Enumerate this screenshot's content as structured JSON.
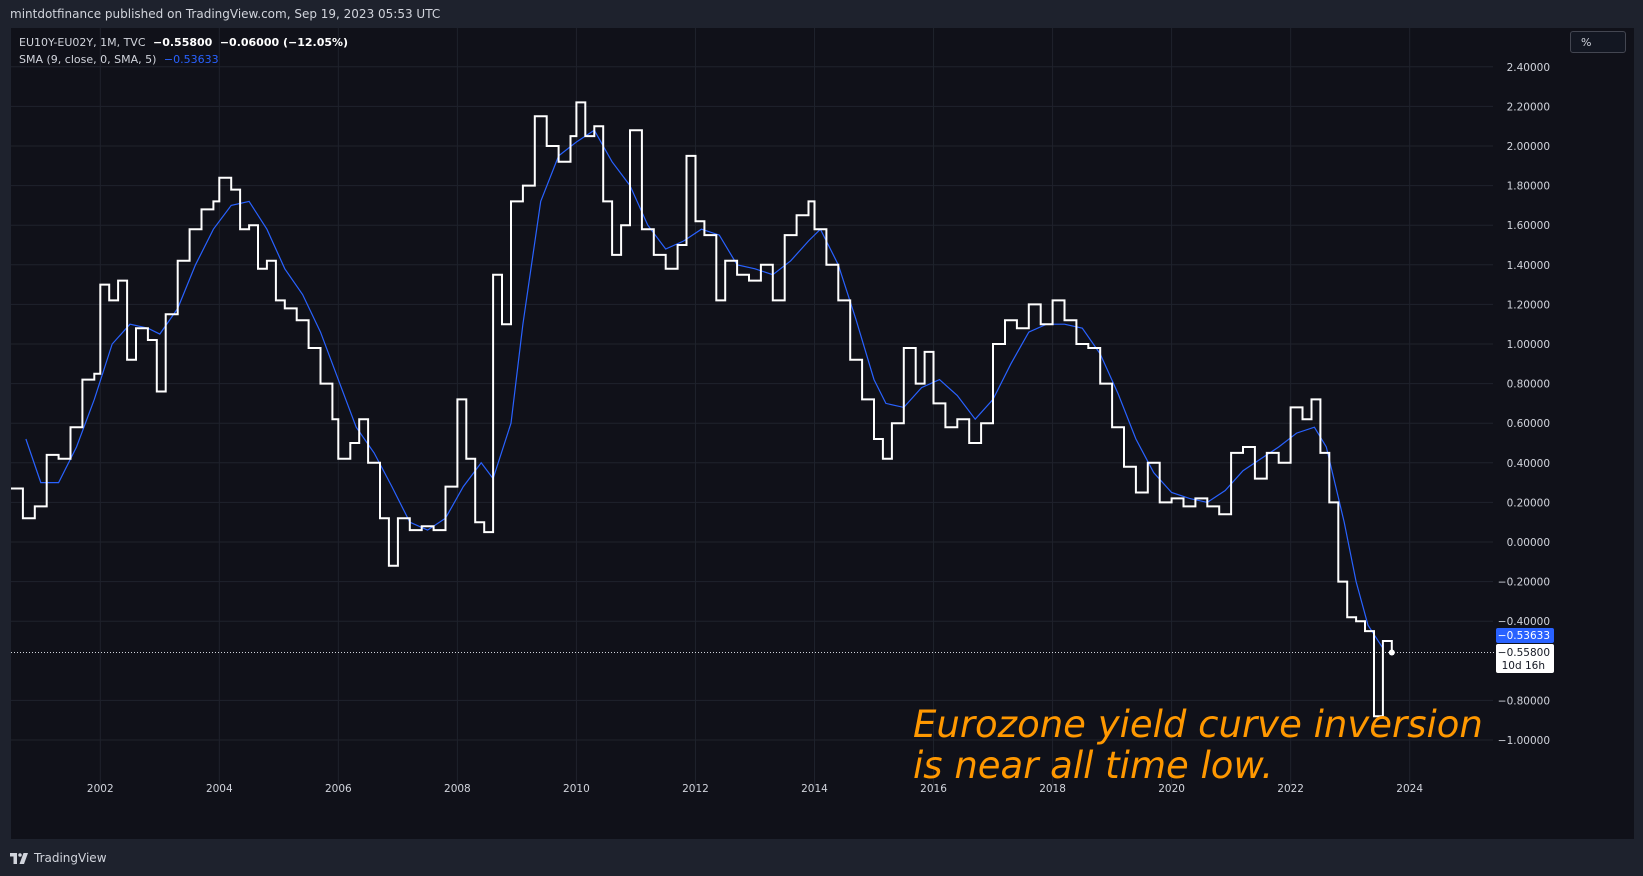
{
  "header": {
    "publisher_text": "mintdotfinance published on TradingView.com, Sep 19, 2023 05:53 UTC"
  },
  "legend": {
    "symbol": "EU10Y-EU02Y, 1M, TVC",
    "last": "−0.55800",
    "change": "−0.06000 (−12.05%)",
    "sma_label": "SMA (9, close, 0, SMA, 5)",
    "sma_value": "−0.53633"
  },
  "unit_button": "%",
  "annotation": {
    "line1": "Eurozone yield curve inversion",
    "line2": "is near all time low."
  },
  "footer": {
    "brand": "TradingView",
    "logo_icon": "tradingview-logo-icon"
  },
  "price_labels": {
    "sma_tag": "−0.53633",
    "last_tag": "−0.55800",
    "countdown": "10d 16h"
  },
  "colors": {
    "background": "#101119",
    "grid": "#1f222c",
    "price_line": "#ffffff",
    "sma_line": "#2962ff",
    "annotation": "#ff9800",
    "axis_text": "#d1d4dc"
  },
  "chart_data": {
    "type": "line",
    "step": true,
    "title": "",
    "xlabel": "",
    "ylabel": "",
    "xlim": [
      2000.5,
      2025.4
    ],
    "ylim": [
      -1.12,
      2.5
    ],
    "grid": true,
    "x_ticks": [
      "2002",
      "2004",
      "2006",
      "2008",
      "2010",
      "2012",
      "2014",
      "2016",
      "2018",
      "2020",
      "2022",
      "2024"
    ],
    "y_ticks": [
      "2.40000",
      "2.20000",
      "2.00000",
      "1.80000",
      "1.60000",
      "1.40000",
      "1.20000",
      "1.00000",
      "0.80000",
      "0.60000",
      "0.40000",
      "0.20000",
      "0.00000",
      "−0.20000",
      "−0.40000",
      "−0.80000",
      "−1.00000"
    ],
    "last_price": -0.558,
    "series": [
      {
        "name": "EU10Y-EU02Y",
        "points": [
          [
            2000.5,
            0.27
          ],
          [
            2000.7,
            0.12
          ],
          [
            2000.9,
            0.18
          ],
          [
            2001.1,
            0.44
          ],
          [
            2001.3,
            0.42
          ],
          [
            2001.5,
            0.58
          ],
          [
            2001.7,
            0.82
          ],
          [
            2001.9,
            0.85
          ],
          [
            2002.0,
            1.3
          ],
          [
            2002.15,
            1.22
          ],
          [
            2002.3,
            1.32
          ],
          [
            2002.45,
            0.92
          ],
          [
            2002.6,
            1.08
          ],
          [
            2002.8,
            1.02
          ],
          [
            2002.95,
            0.76
          ],
          [
            2003.1,
            1.15
          ],
          [
            2003.3,
            1.42
          ],
          [
            2003.5,
            1.58
          ],
          [
            2003.7,
            1.68
          ],
          [
            2003.9,
            1.72
          ],
          [
            2004.0,
            1.84
          ],
          [
            2004.2,
            1.78
          ],
          [
            2004.35,
            1.58
          ],
          [
            2004.5,
            1.6
          ],
          [
            2004.65,
            1.38
          ],
          [
            2004.8,
            1.42
          ],
          [
            2004.95,
            1.22
          ],
          [
            2005.1,
            1.18
          ],
          [
            2005.3,
            1.12
          ],
          [
            2005.5,
            0.98
          ],
          [
            2005.7,
            0.8
          ],
          [
            2005.9,
            0.62
          ],
          [
            2006.0,
            0.42
          ],
          [
            2006.2,
            0.5
          ],
          [
            2006.35,
            0.62
          ],
          [
            2006.5,
            0.4
          ],
          [
            2006.7,
            0.12
          ],
          [
            2006.85,
            -0.12
          ],
          [
            2007.0,
            0.12
          ],
          [
            2007.2,
            0.06
          ],
          [
            2007.4,
            0.08
          ],
          [
            2007.6,
            0.06
          ],
          [
            2007.8,
            0.28
          ],
          [
            2008.0,
            0.72
          ],
          [
            2008.15,
            0.42
          ],
          [
            2008.3,
            0.1
          ],
          [
            2008.45,
            0.05
          ],
          [
            2008.6,
            1.35
          ],
          [
            2008.75,
            1.1
          ],
          [
            2008.9,
            1.72
          ],
          [
            2009.1,
            1.8
          ],
          [
            2009.3,
            2.15
          ],
          [
            2009.5,
            2.0
          ],
          [
            2009.7,
            1.92
          ],
          [
            2009.9,
            2.05
          ],
          [
            2010.0,
            2.22
          ],
          [
            2010.15,
            2.05
          ],
          [
            2010.3,
            2.1
          ],
          [
            2010.45,
            1.72
          ],
          [
            2010.6,
            1.45
          ],
          [
            2010.75,
            1.6
          ],
          [
            2010.9,
            2.08
          ],
          [
            2011.1,
            1.58
          ],
          [
            2011.3,
            1.45
          ],
          [
            2011.5,
            1.38
          ],
          [
            2011.7,
            1.5
          ],
          [
            2011.85,
            1.95
          ],
          [
            2012.0,
            1.62
          ],
          [
            2012.15,
            1.55
          ],
          [
            2012.35,
            1.22
          ],
          [
            2012.5,
            1.42
          ],
          [
            2012.7,
            1.35
          ],
          [
            2012.9,
            1.32
          ],
          [
            2013.1,
            1.4
          ],
          [
            2013.3,
            1.22
          ],
          [
            2013.5,
            1.55
          ],
          [
            2013.7,
            1.65
          ],
          [
            2013.9,
            1.72
          ],
          [
            2014.0,
            1.58
          ],
          [
            2014.2,
            1.4
          ],
          [
            2014.4,
            1.22
          ],
          [
            2014.6,
            0.92
          ],
          [
            2014.8,
            0.72
          ],
          [
            2015.0,
            0.52
          ],
          [
            2015.15,
            0.42
          ],
          [
            2015.3,
            0.6
          ],
          [
            2015.5,
            0.98
          ],
          [
            2015.7,
            0.8
          ],
          [
            2015.85,
            0.96
          ],
          [
            2016.0,
            0.7
          ],
          [
            2016.2,
            0.58
          ],
          [
            2016.4,
            0.62
          ],
          [
            2016.6,
            0.5
          ],
          [
            2016.8,
            0.6
          ],
          [
            2017.0,
            1.0
          ],
          [
            2017.2,
            1.12
          ],
          [
            2017.4,
            1.08
          ],
          [
            2017.6,
            1.2
          ],
          [
            2017.8,
            1.1
          ],
          [
            2018.0,
            1.22
          ],
          [
            2018.2,
            1.12
          ],
          [
            2018.4,
            1.0
          ],
          [
            2018.6,
            0.98
          ],
          [
            2018.8,
            0.8
          ],
          [
            2019.0,
            0.58
          ],
          [
            2019.2,
            0.38
          ],
          [
            2019.4,
            0.25
          ],
          [
            2019.6,
            0.4
          ],
          [
            2019.8,
            0.2
          ],
          [
            2020.0,
            0.22
          ],
          [
            2020.2,
            0.18
          ],
          [
            2020.4,
            0.22
          ],
          [
            2020.6,
            0.18
          ],
          [
            2020.8,
            0.14
          ],
          [
            2021.0,
            0.45
          ],
          [
            2021.2,
            0.48
          ],
          [
            2021.4,
            0.32
          ],
          [
            2021.6,
            0.45
          ],
          [
            2021.8,
            0.4
          ],
          [
            2022.0,
            0.68
          ],
          [
            2022.2,
            0.62
          ],
          [
            2022.35,
            0.72
          ],
          [
            2022.5,
            0.45
          ],
          [
            2022.65,
            0.2
          ],
          [
            2022.8,
            -0.2
          ],
          [
            2022.95,
            -0.38
          ],
          [
            2023.1,
            -0.4
          ],
          [
            2023.25,
            -0.45
          ],
          [
            2023.4,
            -0.88
          ],
          [
            2023.55,
            -0.5
          ],
          [
            2023.7,
            -0.558
          ]
        ]
      },
      {
        "name": "SMA (9, close, 0, SMA, 5)",
        "points": [
          [
            2000.75,
            0.52
          ],
          [
            2001.0,
            0.3
          ],
          [
            2001.3,
            0.3
          ],
          [
            2001.6,
            0.48
          ],
          [
            2001.9,
            0.72
          ],
          [
            2002.2,
            1.0
          ],
          [
            2002.5,
            1.1
          ],
          [
            2002.8,
            1.08
          ],
          [
            2003.0,
            1.05
          ],
          [
            2003.3,
            1.18
          ],
          [
            2003.6,
            1.4
          ],
          [
            2003.9,
            1.58
          ],
          [
            2004.2,
            1.7
          ],
          [
            2004.5,
            1.72
          ],
          [
            2004.8,
            1.58
          ],
          [
            2005.1,
            1.38
          ],
          [
            2005.4,
            1.25
          ],
          [
            2005.7,
            1.06
          ],
          [
            2006.0,
            0.82
          ],
          [
            2006.3,
            0.58
          ],
          [
            2006.6,
            0.45
          ],
          [
            2006.9,
            0.28
          ],
          [
            2007.2,
            0.1
          ],
          [
            2007.5,
            0.06
          ],
          [
            2007.8,
            0.12
          ],
          [
            2008.1,
            0.28
          ],
          [
            2008.4,
            0.4
          ],
          [
            2008.6,
            0.32
          ],
          [
            2008.9,
            0.6
          ],
          [
            2009.1,
            1.1
          ],
          [
            2009.4,
            1.72
          ],
          [
            2009.7,
            1.95
          ],
          [
            2010.0,
            2.02
          ],
          [
            2010.3,
            2.08
          ],
          [
            2010.6,
            1.92
          ],
          [
            2010.9,
            1.8
          ],
          [
            2011.2,
            1.6
          ],
          [
            2011.5,
            1.48
          ],
          [
            2011.8,
            1.52
          ],
          [
            2012.1,
            1.58
          ],
          [
            2012.4,
            1.55
          ],
          [
            2012.7,
            1.4
          ],
          [
            2013.0,
            1.38
          ],
          [
            2013.3,
            1.35
          ],
          [
            2013.6,
            1.42
          ],
          [
            2013.9,
            1.52
          ],
          [
            2014.1,
            1.58
          ],
          [
            2014.4,
            1.4
          ],
          [
            2014.7,
            1.12
          ],
          [
            2015.0,
            0.82
          ],
          [
            2015.2,
            0.7
          ],
          [
            2015.5,
            0.68
          ],
          [
            2015.8,
            0.78
          ],
          [
            2016.1,
            0.82
          ],
          [
            2016.4,
            0.74
          ],
          [
            2016.7,
            0.62
          ],
          [
            2017.0,
            0.72
          ],
          [
            2017.3,
            0.9
          ],
          [
            2017.6,
            1.06
          ],
          [
            2017.9,
            1.1
          ],
          [
            2018.2,
            1.1
          ],
          [
            2018.5,
            1.08
          ],
          [
            2018.8,
            0.95
          ],
          [
            2019.1,
            0.75
          ],
          [
            2019.4,
            0.52
          ],
          [
            2019.7,
            0.35
          ],
          [
            2020.0,
            0.25
          ],
          [
            2020.3,
            0.22
          ],
          [
            2020.6,
            0.2
          ],
          [
            2020.9,
            0.26
          ],
          [
            2021.2,
            0.36
          ],
          [
            2021.5,
            0.42
          ],
          [
            2021.8,
            0.48
          ],
          [
            2022.1,
            0.55
          ],
          [
            2022.4,
            0.58
          ],
          [
            2022.6,
            0.48
          ],
          [
            2022.9,
            0.1
          ],
          [
            2023.1,
            -0.2
          ],
          [
            2023.3,
            -0.42
          ],
          [
            2023.55,
            -0.53633
          ]
        ]
      }
    ]
  }
}
